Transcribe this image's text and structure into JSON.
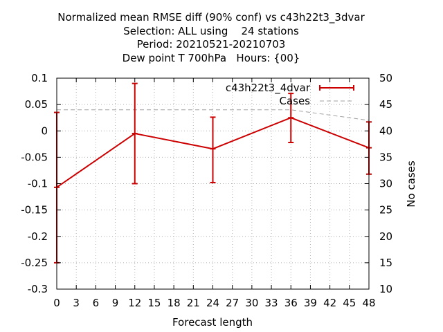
{
  "chart_data": {
    "type": "line",
    "title_lines": [
      "Normalized mean RMSE diff (90% conf) vs c43h22t3_3dvar",
      "Selection: ALL using    24 stations",
      "Period: 20210521-20210703",
      "Dew point T 700hPa   Hours: {00}"
    ],
    "xlabel": "Forecast length",
    "ylabel": "",
    "y2label": "No cases",
    "xlim": [
      0,
      48
    ],
    "ylim": [
      -0.3,
      0.1
    ],
    "y2lim": [
      10,
      50
    ],
    "x_ticks": [
      "0",
      "3",
      "6",
      "9",
      "12",
      "15",
      "18",
      "21",
      "24",
      "27",
      "30",
      "33",
      "36",
      "39",
      "42",
      "45",
      "48"
    ],
    "y_ticks": [
      "0.1",
      "0.05",
      "0",
      "-0.05",
      "-0.1",
      "-0.15",
      "-0.2",
      "-0.25",
      "-0.3"
    ],
    "y2_ticks": [
      "50",
      "45",
      "40",
      "35",
      "30",
      "25",
      "20",
      "15",
      "10"
    ],
    "grid": true,
    "legend_position": "top-right",
    "series": [
      {
        "name": "c43h22t3_4dvar",
        "color": "#cc0000",
        "style": "line-with-errorbars",
        "x": [
          0,
          12,
          24,
          36,
          48
        ],
        "y": [
          -0.107,
          -0.005,
          -0.034,
          0.025,
          -0.032
        ],
        "err_low": [
          -0.25,
          -0.1,
          -0.098,
          -0.022,
          -0.082
        ],
        "err_high": [
          0.035,
          0.09,
          0.026,
          0.071,
          0.017
        ]
      },
      {
        "name": "Cases",
        "color": "#a0a0a0",
        "style": "dashed",
        "axis": "y2",
        "x": [
          0,
          12,
          24,
          36,
          48
        ],
        "y": [
          44,
          44,
          44,
          44,
          42
        ]
      }
    ]
  }
}
